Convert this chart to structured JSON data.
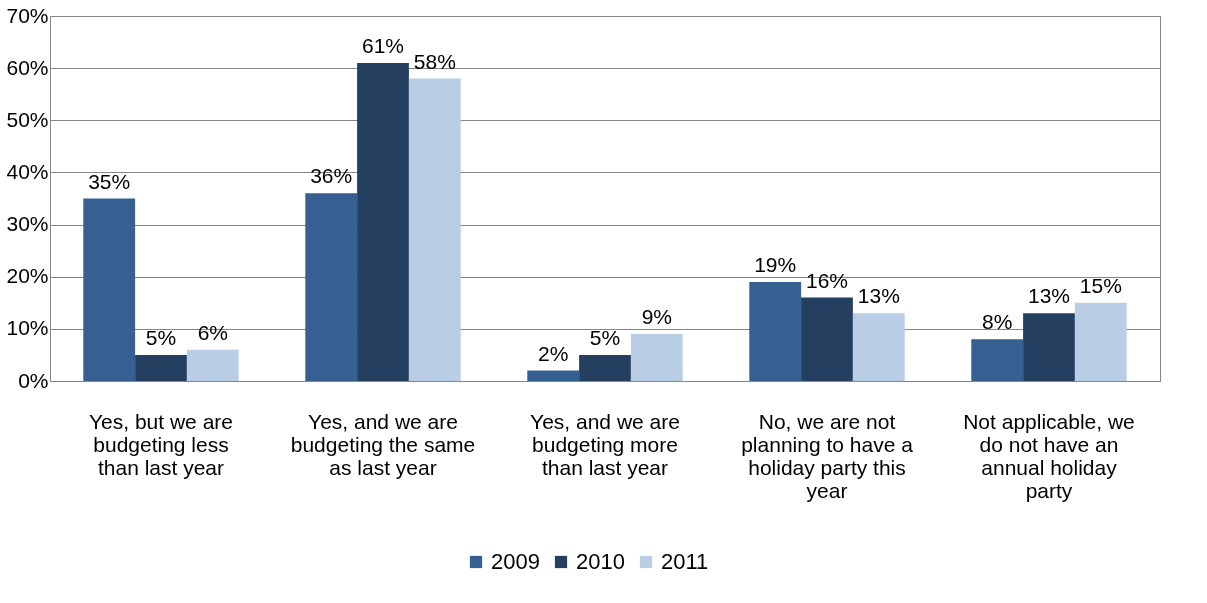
{
  "chart_data": {
    "type": "bar",
    "categories": [
      "Yes, but we are budgeting less than last year",
      "Yes, and we are budgeting the same as last year",
      "Yes, and we are budgeting more than last year",
      "No, we are not planning to have a holiday party this year",
      "Not applicable, we do not have an annual holiday party"
    ],
    "series": [
      {
        "name": "2009",
        "color": "#376092",
        "values": [
          35,
          36,
          2,
          19,
          8
        ],
        "value_labels": [
          "35%",
          "36%",
          "2%",
          "19%",
          "8%"
        ]
      },
      {
        "name": "2010",
        "color": "#243f60",
        "values": [
          5,
          61,
          5,
          16,
          13
        ],
        "value_labels": [
          "5%",
          "61%",
          "5%",
          "16%",
          "13%"
        ]
      },
      {
        "name": "2011",
        "color": "#b9cde5",
        "values": [
          6,
          58,
          9,
          13,
          15
        ],
        "value_labels": [
          "6%",
          "58%",
          "9%",
          "13%",
          "15%"
        ]
      }
    ],
    "ylim": [
      0,
      70
    ],
    "yticks": [
      {
        "value": 0,
        "label": "0%"
      },
      {
        "value": 10,
        "label": "10%"
      },
      {
        "value": 20,
        "label": "20%"
      },
      {
        "value": 30,
        "label": "30%"
      },
      {
        "value": 40,
        "label": "40%"
      },
      {
        "value": 50,
        "label": "50%"
      },
      {
        "value": 60,
        "label": "60%"
      },
      {
        "value": 70,
        "label": "70%"
      }
    ],
    "grid": "y",
    "legend": "bottom"
  }
}
